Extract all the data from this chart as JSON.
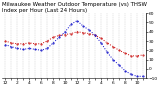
{
  "title": "Milwaukee Weather Outdoor Temperature (vs) THSW Index per Hour (Last 24 Hours)",
  "background_color": "#ffffff",
  "plot_bg_color": "#ffffff",
  "grid_color": "#bbbbbb",
  "line1_color": "#cc0000",
  "line2_color": "#0000cc",
  "hours": [
    0,
    1,
    2,
    3,
    4,
    5,
    6,
    7,
    8,
    9,
    10,
    11,
    12,
    13,
    14,
    15,
    16,
    17,
    18,
    19,
    20,
    21,
    22,
    23
  ],
  "temp": [
    30,
    28,
    27,
    27,
    28,
    27,
    27,
    30,
    34,
    36,
    37,
    38,
    40,
    39,
    38,
    36,
    33,
    28,
    24,
    20,
    17,
    14,
    14,
    15
  ],
  "thsw": [
    26,
    24,
    22,
    21,
    22,
    21,
    20,
    22,
    28,
    34,
    40,
    48,
    52,
    46,
    42,
    36,
    28,
    18,
    10,
    4,
    -2,
    -6,
    -8,
    -8
  ],
  "ylim": [
    -10,
    60
  ],
  "yticks": [
    -10,
    0,
    10,
    20,
    30,
    40,
    50,
    60
  ],
  "hour_labels": [
    "12",
    "",
    "2",
    "",
    "4",
    "",
    "6",
    "",
    "8",
    "",
    "10",
    "",
    "12",
    "",
    "2",
    "",
    "4",
    "",
    "6",
    "",
    "8",
    "",
    "10",
    ""
  ],
  "title_fontsize": 4.0,
  "tick_fontsize": 3.2,
  "linewidth": 0.7,
  "markersize": 1.0
}
